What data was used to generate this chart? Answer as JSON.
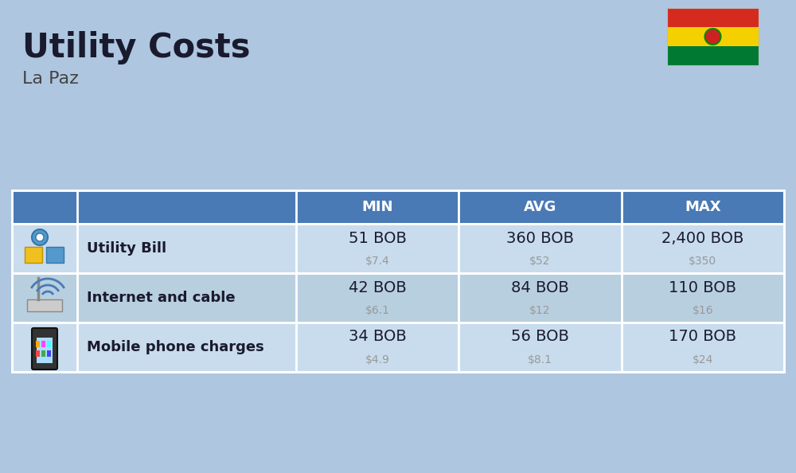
{
  "title": "Utility Costs",
  "subtitle": "La Paz",
  "background_color": "#aec6df",
  "header_color": "#4a7ab5",
  "header_text_color": "#ffffff",
  "row_color_odd": "#c8dced",
  "row_color_even": "#b8cfe0",
  "col_header_labels": [
    "MIN",
    "AVG",
    "MAX"
  ],
  "rows": [
    {
      "label": "Utility Bill",
      "min_bob": "51 BOB",
      "min_usd": "$7.4",
      "avg_bob": "360 BOB",
      "avg_usd": "$52",
      "max_bob": "2,400 BOB",
      "max_usd": "$350",
      "icon": "utility"
    },
    {
      "label": "Internet and cable",
      "min_bob": "42 BOB",
      "min_usd": "$6.1",
      "avg_bob": "84 BOB",
      "avg_usd": "$12",
      "max_bob": "110 BOB",
      "max_usd": "$16",
      "icon": "internet"
    },
    {
      "label": "Mobile phone charges",
      "min_bob": "34 BOB",
      "min_usd": "$4.9",
      "avg_bob": "56 BOB",
      "avg_usd": "$8.1",
      "max_bob": "170 BOB",
      "max_usd": "$24",
      "icon": "mobile"
    }
  ],
  "bob_text_color": "#1a1a2e",
  "usd_text_color": "#999999",
  "label_text_color": "#1a1a2e",
  "flag_colors": [
    "#d52b1e",
    "#f5d000",
    "#007a33"
  ],
  "title_color": "#1a1a2e",
  "subtitle_color": "#444444"
}
